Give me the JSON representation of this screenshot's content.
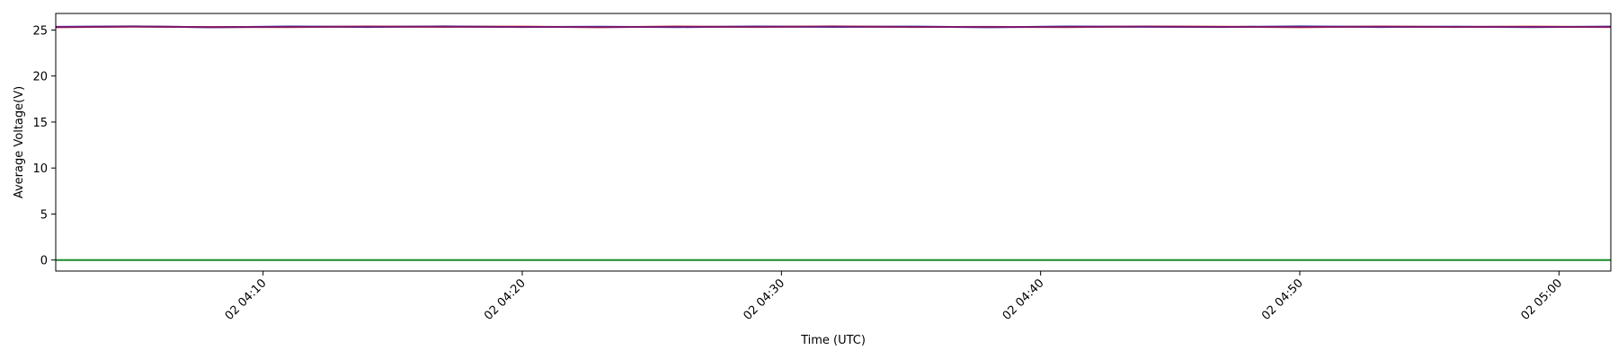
{
  "chart_data": {
    "type": "line",
    "title": "",
    "xlabel": "Time (UTC)",
    "ylabel": "Average Voltage(V)",
    "x_range": [
      "02 04:02",
      "02 05:02"
    ],
    "ylim": [
      -1.2,
      26.8
    ],
    "x_ticks": [
      {
        "t": "02 04:10",
        "label": "02 04:10"
      },
      {
        "t": "02 04:20",
        "label": "02 04:20"
      },
      {
        "t": "02 04:30",
        "label": "02 04:30"
      },
      {
        "t": "02 04:40",
        "label": "02 04:40"
      },
      {
        "t": "02 04:50",
        "label": "02 04:50"
      },
      {
        "t": "02 05:00",
        "label": "02 05:00"
      }
    ],
    "y_ticks": [
      0,
      5,
      10,
      15,
      20,
      25
    ],
    "grid": false,
    "series": [
      {
        "color": "#1f3fbf",
        "x": [
          "02 04:02",
          "02 04:05",
          "02 04:08",
          "02 04:11",
          "02 04:14",
          "02 04:17",
          "02 04:20",
          "02 04:23",
          "02 04:26",
          "02 04:29",
          "02 04:32",
          "02 04:35",
          "02 04:38",
          "02 04:41",
          "02 04:44",
          "02 04:47",
          "02 04:50",
          "02 04:53",
          "02 04:56",
          "02 04:59",
          "02 05:02"
        ],
        "y": [
          25.35,
          25.4,
          25.3,
          25.38,
          25.33,
          25.4,
          25.32,
          25.36,
          25.31,
          25.39,
          25.34,
          25.37,
          25.3,
          25.38,
          25.35,
          25.32,
          25.4,
          25.33,
          25.36,
          25.31,
          25.37
        ]
      },
      {
        "color": "#d63a2a",
        "x": [
          "02 04:02",
          "02 04:05",
          "02 04:08",
          "02 04:11",
          "02 04:14",
          "02 04:17",
          "02 04:20",
          "02 04:23",
          "02 04:26",
          "02 04:29",
          "02 04:32",
          "02 04:35",
          "02 04:38",
          "02 04:41",
          "02 04:44",
          "02 04:47",
          "02 04:50",
          "02 04:53",
          "02 04:56",
          "02 04:59",
          "02 05:02"
        ],
        "y": [
          25.3,
          25.36,
          25.33,
          25.31,
          25.39,
          25.34,
          25.37,
          25.3,
          25.38,
          25.33,
          25.4,
          25.32,
          25.35,
          25.31,
          25.39,
          25.36,
          25.3,
          25.38,
          25.33,
          25.37,
          25.32
        ]
      },
      {
        "color": "#7a1a6e",
        "x": [
          "02 04:02",
          "02 04:05",
          "02 04:08",
          "02 04:11",
          "02 04:14",
          "02 04:17",
          "02 04:20",
          "02 04:23",
          "02 04:26",
          "02 04:29",
          "02 04:32",
          "02 04:35",
          "02 04:38",
          "02 04:41",
          "02 04:44",
          "02 04:47",
          "02 04:50",
          "02 04:53",
          "02 04:56",
          "02 04:59",
          "02 05:02"
        ],
        "y": [
          25.33,
          25.38,
          25.31,
          25.35,
          25.36,
          25.37,
          25.34,
          25.33,
          25.35,
          25.36,
          25.37,
          25.35,
          25.33,
          25.35,
          25.37,
          25.34,
          25.35,
          25.36,
          25.35,
          25.34,
          25.35
        ]
      },
      {
        "color": "#1a8a2a",
        "x": [
          "02 04:02",
          "02 05:02"
        ],
        "y": [
          0.0,
          0.0
        ]
      }
    ]
  }
}
